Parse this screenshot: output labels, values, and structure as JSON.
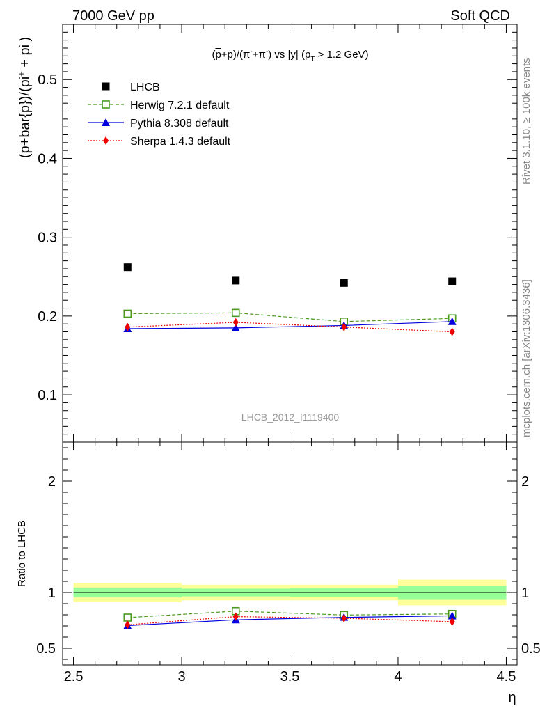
{
  "header": {
    "left": "7000 GeV pp",
    "right": "Soft QCD"
  },
  "side_labels": {
    "rivet": "Rivet 3.1.10, ≥ 100k events",
    "mcplots": "mcplots.cern.ch [arXiv:1306.3436]"
  },
  "chart_data": [
    {
      "type": "scatter",
      "panel": "main",
      "title": "(p̅+p)/(π⁻+π⁺) vs |y| (p_T > 1.2 GeV)",
      "title_parts": {
        "pre": "(",
        "pbar": "p",
        "mid": "+p)/(π",
        "sup1": "-",
        "mid2": "+π",
        "sup2": "-",
        "mid3": ") vs |y| (p",
        "sub": "T",
        "post": " > 1.2 GeV)"
      },
      "ylabel": "(p+bar{p})/(pi⁺ + pi⁻)",
      "ylabel_parts": {
        "base": "(p+bar{p})/(pi",
        "sup1": "+",
        "mid": " + pi",
        "sup2": "-",
        "end": ")"
      },
      "watermark": "LHCB_2012_I1119400",
      "xlim": [
        2.45,
        4.55
      ],
      "ylim": [
        0.04,
        0.57
      ],
      "yticks": [
        0.1,
        0.2,
        0.3,
        0.4,
        0.5
      ],
      "ytick_labels": [
        "0.1",
        "0.2",
        "0.3",
        "0.4",
        "0.5"
      ],
      "legend_position": "top-left",
      "x": [
        2.75,
        3.25,
        3.75,
        4.25
      ],
      "series": [
        {
          "name": "LHCB",
          "style": "data",
          "marker": "square",
          "color": "#000000",
          "values": [
            0.262,
            0.245,
            0.242,
            0.244
          ]
        },
        {
          "name": "Herwig 7.2.1 default",
          "style": "dashed",
          "marker": "open-square",
          "color": "#4a9a1e",
          "values": [
            0.203,
            0.204,
            0.193,
            0.197
          ],
          "errors": [
            0.004,
            0.004,
            0.004,
            0.004
          ]
        },
        {
          "name": "Pythia 8.308 default",
          "style": "solid",
          "marker": "triangle",
          "color": "#0000dd",
          "values": [
            0.184,
            0.185,
            0.188,
            0.193
          ],
          "errors": [
            0.003,
            0.003,
            0.003,
            0.003
          ]
        },
        {
          "name": "Sherpa 1.4.3 default",
          "style": "dotted",
          "marker": "diamond",
          "color": "#ee0000",
          "values": [
            0.186,
            0.192,
            0.186,
            0.18
          ],
          "errors": [
            0.003,
            0.003,
            0.003,
            0.003
          ]
        }
      ]
    },
    {
      "type": "scatter",
      "panel": "ratio",
      "ylabel": "Ratio to LHCB",
      "xlabel": "η",
      "xlim": [
        2.45,
        4.55
      ],
      "ylim": [
        0.35,
        2.35
      ],
      "xticks": [
        2.5,
        3,
        3.5,
        4,
        4.5
      ],
      "xtick_labels": [
        "2.5",
        "3",
        "3.5",
        "4",
        "4.5"
      ],
      "yticks": [
        0.5,
        1,
        2
      ],
      "ytick_labels": [
        "0.5",
        "1",
        "2"
      ],
      "bands": {
        "bins": [
          [
            2.5,
            3.0
          ],
          [
            3.0,
            3.5
          ],
          [
            3.5,
            4.0
          ],
          [
            4.0,
            4.5
          ]
        ],
        "outer_yellow": [
          [
            0.915,
            1.085
          ],
          [
            0.93,
            1.07
          ],
          [
            0.93,
            1.07
          ],
          [
            0.885,
            1.115
          ]
        ],
        "inner_green": [
          [
            0.955,
            1.045
          ],
          [
            0.965,
            1.035
          ],
          [
            0.96,
            1.04
          ],
          [
            0.94,
            1.06
          ]
        ]
      },
      "x": [
        2.75,
        3.25,
        3.75,
        4.25
      ],
      "series": [
        {
          "name": "Herwig 7.2.1 default",
          "style": "dashed",
          "marker": "open-square",
          "color": "#4a9a1e",
          "values": [
            0.775,
            0.833,
            0.798,
            0.808
          ]
        },
        {
          "name": "Pythia 8.308 default",
          "style": "solid",
          "marker": "triangle",
          "color": "#0000dd",
          "values": [
            0.703,
            0.755,
            0.777,
            0.791
          ]
        },
        {
          "name": "Sherpa 1.4.3 default",
          "style": "dotted",
          "marker": "diamond",
          "color": "#ee0000",
          "values": [
            0.71,
            0.784,
            0.769,
            0.738
          ]
        }
      ]
    }
  ]
}
